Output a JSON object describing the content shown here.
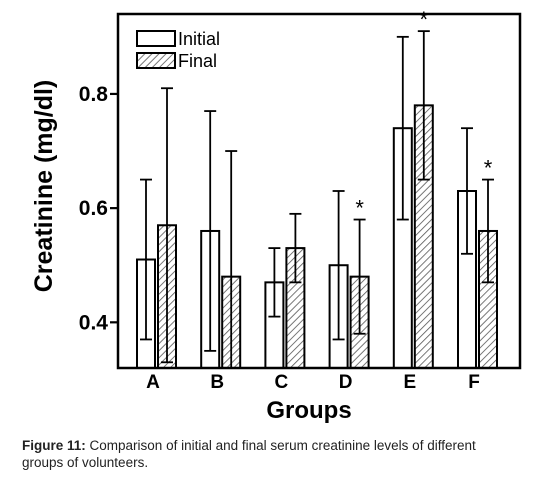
{
  "chart_data": {
    "type": "bar",
    "categories": [
      "A",
      "B",
      "C",
      "D",
      "E",
      "F"
    ],
    "series": [
      {
        "name": "Initial",
        "values": [
          0.51,
          0.56,
          0.47,
          0.5,
          0.74,
          0.63
        ],
        "errors": [
          0.14,
          0.21,
          0.06,
          0.13,
          0.16,
          0.11
        ],
        "pattern": "empty"
      },
      {
        "name": "Final",
        "values": [
          0.57,
          0.48,
          0.53,
          0.48,
          0.78,
          0.56
        ],
        "errors": [
          0.24,
          0.22,
          0.06,
          0.1,
          0.13,
          0.09
        ],
        "pattern": "hatched"
      }
    ],
    "significance": [
      {
        "category": "D",
        "series": "Final",
        "label": "*"
      },
      {
        "category": "E",
        "series": "Final",
        "label": "*"
      },
      {
        "category": "F",
        "series": "Final",
        "label": "*"
      }
    ],
    "xlabel": "Groups",
    "ylabel": "Creatinine (mg/dl)",
    "yticks": [
      "0.4",
      "0.6",
      "0.8"
    ],
    "ytick_values": [
      0.4,
      0.6,
      0.8
    ],
    "ylim": [
      0.32,
      0.94
    ],
    "grid": false,
    "legend_position": "top-left",
    "colors": {
      "axis": "#000000",
      "bar_fill": "#ffffff",
      "hatch": "#555555",
      "caption": "#222222"
    }
  },
  "caption": {
    "label": "Figure 11:",
    "text_line1": " Comparison of initial and final serum creatinine levels of different",
    "text_line2": "groups of volunteers."
  }
}
